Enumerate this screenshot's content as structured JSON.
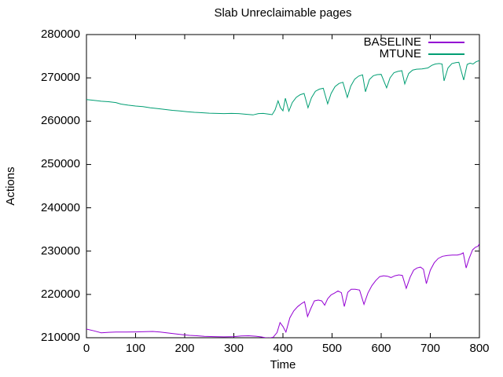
{
  "title": "Slab Unreclaimable pages",
  "colors": {
    "baseline": "#9400D3",
    "mtune": "#009E73",
    "axis": "#000000",
    "background": "#ffffff"
  },
  "legend": {
    "items": [
      {
        "label": "BASELINE",
        "color": "#9400D3"
      },
      {
        "label": "MTUNE",
        "color": "#009E73"
      }
    ]
  },
  "chart_data": {
    "type": "line",
    "title": "Slab Unreclaimable pages",
    "xlabel": "Time",
    "ylabel": "Actions",
    "xlim": [
      0,
      800
    ],
    "ylim": [
      210000,
      280000
    ],
    "x_ticks": [
      0,
      100,
      200,
      300,
      400,
      500,
      600,
      700,
      800
    ],
    "y_ticks": [
      210000,
      220000,
      230000,
      240000,
      250000,
      260000,
      270000,
      280000
    ],
    "grid": false,
    "legend_position": "top-right-inside",
    "series": [
      {
        "name": "BASELINE",
        "color": "#9400D3",
        "points": [
          [
            0,
            212000
          ],
          [
            15,
            211600
          ],
          [
            30,
            211150
          ],
          [
            45,
            211250
          ],
          [
            60,
            211300
          ],
          [
            80,
            211300
          ],
          [
            100,
            211350
          ],
          [
            120,
            211400
          ],
          [
            135,
            211450
          ],
          [
            150,
            211300
          ],
          [
            165,
            211100
          ],
          [
            180,
            210900
          ],
          [
            195,
            210700
          ],
          [
            210,
            210550
          ],
          [
            225,
            210450
          ],
          [
            240,
            210300
          ],
          [
            260,
            210250
          ],
          [
            280,
            210200
          ],
          [
            300,
            210250
          ],
          [
            315,
            210400
          ],
          [
            330,
            210450
          ],
          [
            345,
            210350
          ],
          [
            355,
            210200
          ],
          [
            365,
            210000
          ],
          [
            372,
            209950
          ],
          [
            380,
            210100
          ],
          [
            388,
            211200
          ],
          [
            394,
            213500
          ],
          [
            400,
            212600
          ],
          [
            406,
            211300
          ],
          [
            414,
            214600
          ],
          [
            422,
            216200
          ],
          [
            430,
            217200
          ],
          [
            438,
            217900
          ],
          [
            444,
            218300
          ],
          [
            450,
            214900
          ],
          [
            457,
            216800
          ],
          [
            464,
            218500
          ],
          [
            472,
            218700
          ],
          [
            479,
            218500
          ],
          [
            485,
            217500
          ],
          [
            491,
            219000
          ],
          [
            498,
            219900
          ],
          [
            505,
            220300
          ],
          [
            512,
            220800
          ],
          [
            519,
            220400
          ],
          [
            525,
            217200
          ],
          [
            532,
            220500
          ],
          [
            539,
            221200
          ],
          [
            547,
            221200
          ],
          [
            556,
            221000
          ],
          [
            565,
            217700
          ],
          [
            573,
            220300
          ],
          [
            581,
            222000
          ],
          [
            589,
            223200
          ],
          [
            597,
            224100
          ],
          [
            605,
            224300
          ],
          [
            613,
            224200
          ],
          [
            620,
            223900
          ],
          [
            628,
            224300
          ],
          [
            636,
            224500
          ],
          [
            643,
            224400
          ],
          [
            651,
            221400
          ],
          [
            659,
            224000
          ],
          [
            666,
            225600
          ],
          [
            673,
            226100
          ],
          [
            680,
            226300
          ],
          [
            686,
            225800
          ],
          [
            692,
            222500
          ],
          [
            700,
            225600
          ],
          [
            708,
            227300
          ],
          [
            716,
            228300
          ],
          [
            725,
            228800
          ],
          [
            735,
            229000
          ],
          [
            745,
            229100
          ],
          [
            755,
            229100
          ],
          [
            762,
            229300
          ],
          [
            767,
            229600
          ],
          [
            773,
            226100
          ],
          [
            779,
            228300
          ],
          [
            786,
            230300
          ],
          [
            792,
            230900
          ],
          [
            797,
            231100
          ],
          [
            800,
            231700
          ]
        ]
      },
      {
        "name": "MTUNE",
        "color": "#009E73",
        "points": [
          [
            0,
            265000
          ],
          [
            15,
            264800
          ],
          [
            30,
            264600
          ],
          [
            45,
            264500
          ],
          [
            60,
            264300
          ],
          [
            70,
            263950
          ],
          [
            85,
            263700
          ],
          [
            100,
            263500
          ],
          [
            115,
            263350
          ],
          [
            130,
            263100
          ],
          [
            145,
            262900
          ],
          [
            160,
            262700
          ],
          [
            175,
            262500
          ],
          [
            190,
            262350
          ],
          [
            205,
            262200
          ],
          [
            220,
            262050
          ],
          [
            235,
            261950
          ],
          [
            250,
            261850
          ],
          [
            265,
            261800
          ],
          [
            280,
            261750
          ],
          [
            295,
            261800
          ],
          [
            310,
            261750
          ],
          [
            325,
            261600
          ],
          [
            339,
            261450
          ],
          [
            350,
            261750
          ],
          [
            360,
            261800
          ],
          [
            370,
            261650
          ],
          [
            378,
            261500
          ],
          [
            384,
            262600
          ],
          [
            390,
            264700
          ],
          [
            395,
            263100
          ],
          [
            400,
            262400
          ],
          [
            405,
            265300
          ],
          [
            412,
            262300
          ],
          [
            419,
            264300
          ],
          [
            427,
            265500
          ],
          [
            435,
            266100
          ],
          [
            443,
            266400
          ],
          [
            451,
            263100
          ],
          [
            458,
            265400
          ],
          [
            466,
            266900
          ],
          [
            474,
            267400
          ],
          [
            482,
            267600
          ],
          [
            491,
            264000
          ],
          [
            498,
            266400
          ],
          [
            506,
            268000
          ],
          [
            514,
            268700
          ],
          [
            522,
            269000
          ],
          [
            531,
            265500
          ],
          [
            538,
            268100
          ],
          [
            546,
            269700
          ],
          [
            554,
            270400
          ],
          [
            562,
            270700
          ],
          [
            568,
            266800
          ],
          [
            576,
            269600
          ],
          [
            584,
            270500
          ],
          [
            592,
            270750
          ],
          [
            600,
            270800
          ],
          [
            611,
            267700
          ],
          [
            618,
            270000
          ],
          [
            626,
            271200
          ],
          [
            634,
            271500
          ],
          [
            642,
            271650
          ],
          [
            648,
            268600
          ],
          [
            656,
            271000
          ],
          [
            664,
            271800
          ],
          [
            672,
            272000
          ],
          [
            683,
            272050
          ],
          [
            695,
            272300
          ],
          [
            703,
            272900
          ],
          [
            710,
            273200
          ],
          [
            718,
            273300
          ],
          [
            724,
            273200
          ],
          [
            728,
            269300
          ],
          [
            736,
            272300
          ],
          [
            744,
            273300
          ],
          [
            752,
            273500
          ],
          [
            758,
            273600
          ],
          [
            768,
            269500
          ],
          [
            775,
            273100
          ],
          [
            781,
            273400
          ],
          [
            787,
            273200
          ],
          [
            793,
            273700
          ],
          [
            800,
            274000
          ]
        ]
      }
    ]
  }
}
